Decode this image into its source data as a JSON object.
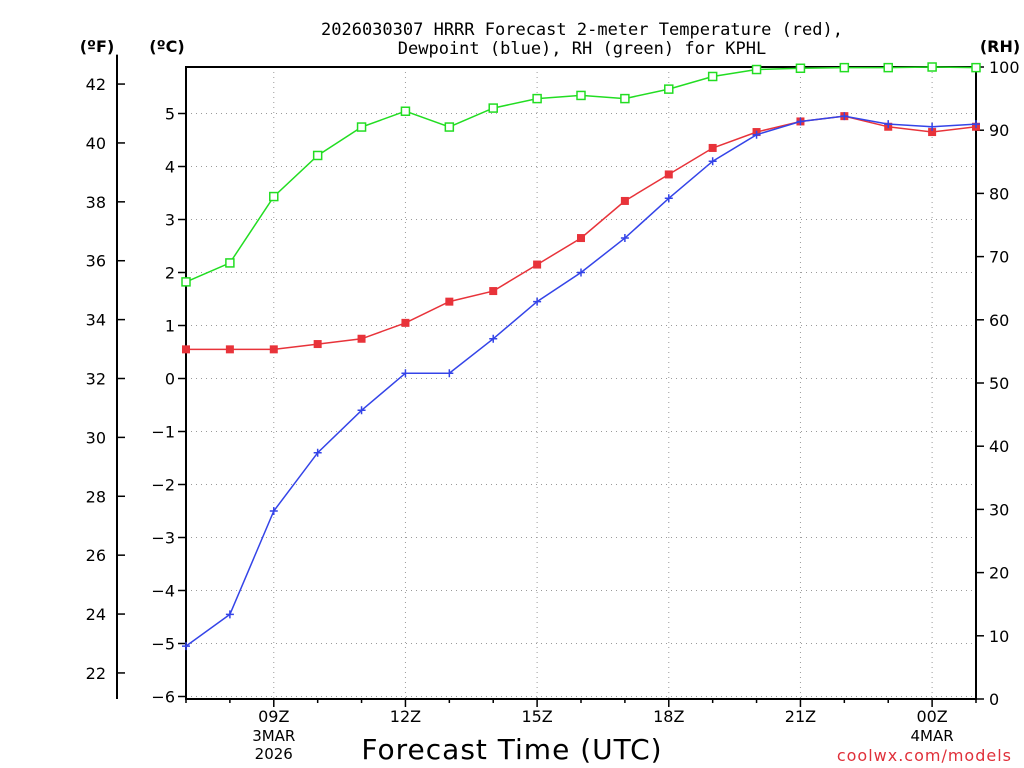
{
  "chart_data": {
    "type": "line",
    "title_line1": "2026030307 HRRR Forecast 2-meter Temperature (red),",
    "title_line2": "Dewpoint (blue), RH (green) for KPHL",
    "unit_left_outer": "(ºF)",
    "unit_left_inner": "(ºC)",
    "unit_right": "(RH)",
    "xlabel": "Forecast Time (UTC)",
    "credit": "coolwx.com/models",
    "x_hours": [
      7,
      8,
      9,
      10,
      11,
      12,
      13,
      14,
      15,
      16,
      17,
      18,
      19,
      20,
      21,
      22,
      23,
      24,
      25
    ],
    "x_tick_labels": [
      {
        "hour": 9,
        "label": "09Z"
      },
      {
        "hour": 12,
        "label": "12Z"
      },
      {
        "hour": 15,
        "label": "15Z"
      },
      {
        "hour": 18,
        "label": "18Z"
      },
      {
        "hour": 21,
        "label": "21Z"
      },
      {
        "hour": 24,
        "label": "00Z"
      }
    ],
    "date_labels": [
      {
        "hour": 9,
        "lines": [
          "3MAR",
          "2026"
        ]
      },
      {
        "hour": 24,
        "lines": [
          "4MAR"
        ]
      }
    ],
    "xlim": [
      7,
      25
    ],
    "ylim_c": [
      -6,
      5.5
    ],
    "ylim_rh": [
      0,
      100
    ],
    "c_ticks": [
      -6,
      -5,
      -4,
      -3,
      -2,
      -1,
      0,
      1,
      2,
      3,
      4,
      5
    ],
    "c_tick_labels": [
      "−6",
      "−5",
      "−4",
      "−3",
      "−2",
      "−1",
      "0",
      "1",
      "2",
      "3",
      "4",
      "5"
    ],
    "f_ticks": [
      22,
      24,
      26,
      28,
      30,
      32,
      34,
      36,
      38,
      40,
      42
    ],
    "rh_ticks": [
      0,
      10,
      20,
      30,
      40,
      50,
      60,
      70,
      80,
      90,
      100
    ],
    "series": [
      {
        "name": "Temperature",
        "color": "#e8333a",
        "marker": "square",
        "values_c": [
          0.55,
          0.55,
          0.55,
          0.65,
          0.75,
          1.05,
          1.45,
          1.65,
          2.15,
          2.65,
          3.35,
          3.85,
          4.35,
          4.65,
          4.85,
          4.95,
          4.75,
          4.65,
          4.75
        ]
      },
      {
        "name": "Dewpoint",
        "color": "#3444e8",
        "marker": "plus",
        "values_c": [
          -5.05,
          -4.45,
          -2.5,
          -1.4,
          -0.6,
          0.1,
          0.1,
          0.75,
          1.45,
          2.0,
          2.65,
          3.4,
          4.1,
          4.6,
          4.85,
          4.95,
          4.8,
          4.75,
          4.8
        ]
      },
      {
        "name": "RH",
        "color": "#22dd22",
        "marker": "open-square",
        "values_rh": [
          66,
          69,
          79.5,
          86,
          90.5,
          93,
          90.5,
          93.5,
          95,
          95.5,
          95,
          96.5,
          98.5,
          99.6,
          99.8,
          99.9,
          99.9,
          100,
          99.9
        ]
      }
    ]
  }
}
